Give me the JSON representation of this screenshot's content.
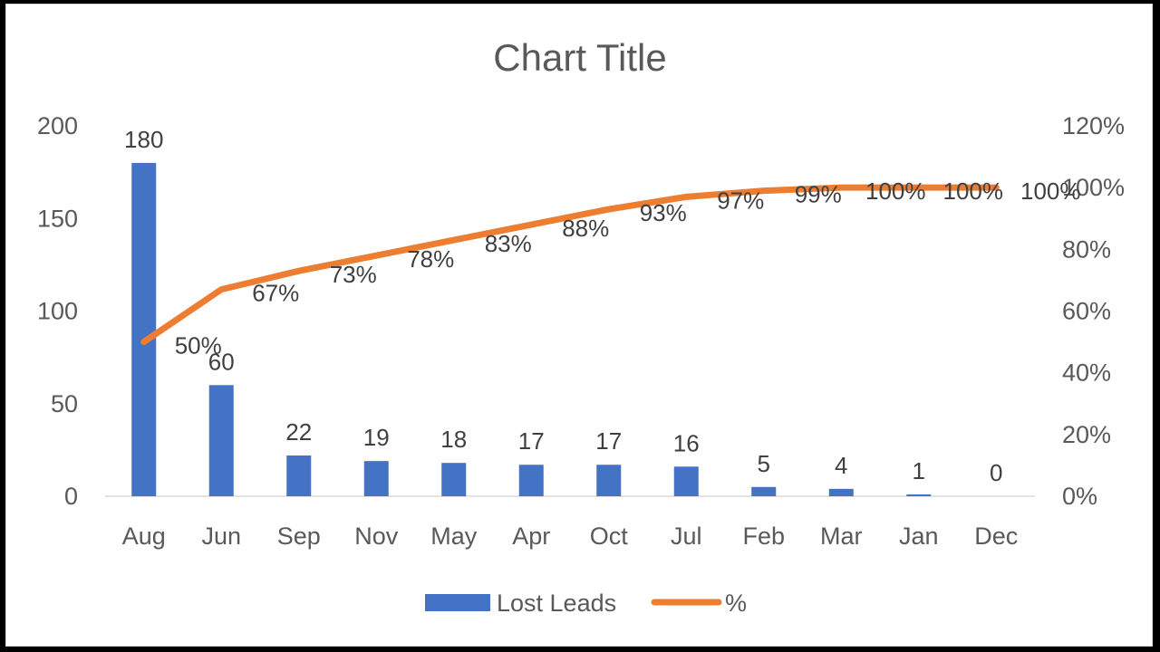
{
  "chart_data": {
    "type": "bar",
    "title": "Chart Title",
    "categories": [
      "Aug",
      "Jun",
      "Sep",
      "Nov",
      "May",
      "Apr",
      "Oct",
      "Jul",
      "Feb",
      "Mar",
      "Jan",
      "Dec"
    ],
    "series": [
      {
        "name": "Lost Leads",
        "type": "bar",
        "axis": "left",
        "color": "#4472C4",
        "values": [
          180,
          60,
          22,
          19,
          18,
          17,
          17,
          16,
          5,
          4,
          1,
          0
        ],
        "labels": [
          "180",
          "60",
          "22",
          "19",
          "18",
          "17",
          "17",
          "16",
          "5",
          "4",
          "1",
          "0"
        ]
      },
      {
        "name": "%",
        "type": "line",
        "axis": "right",
        "color": "#ED7D31",
        "values": [
          50,
          67,
          73,
          78,
          83,
          88,
          93,
          97,
          99,
          100,
          100,
          100
        ],
        "labels": [
          "50%",
          "67%",
          "73%",
          "78%",
          "83%",
          "88%",
          "93%",
          "97%",
          "99%",
          "100%",
          "100%",
          "100%"
        ]
      }
    ],
    "y_left": {
      "min": 0,
      "max": 200,
      "ticks": [
        0,
        50,
        100,
        150,
        200
      ],
      "tick_labels": [
        "0",
        "50",
        "100",
        "150",
        "200"
      ]
    },
    "y_right": {
      "min": 0,
      "max": 120,
      "ticks": [
        0,
        20,
        40,
        60,
        80,
        100,
        120
      ],
      "tick_labels": [
        "0%",
        "20%",
        "40%",
        "60%",
        "80%",
        "100%",
        "120%"
      ]
    },
    "grid": false,
    "legend_position": "bottom"
  }
}
